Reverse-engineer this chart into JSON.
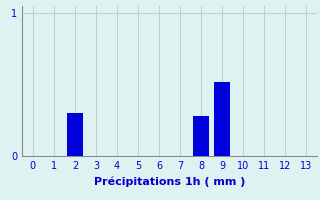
{
  "xlabel": "Précipitations 1h ( mm )",
  "hours": [
    0,
    1,
    2,
    3,
    4,
    5,
    6,
    7,
    8,
    9,
    10,
    11,
    12,
    13
  ],
  "values": [
    0,
    0,
    0.3,
    0,
    0,
    0,
    0,
    0,
    0.28,
    0.52,
    0,
    0,
    0,
    0
  ],
  "bar_color": "#0000dd",
  "background_color": "#dff2f2",
  "grid_color": "#b0d4d4",
  "text_color": "#0000cc",
  "ylim": [
    0,
    1.05
  ],
  "xlim": [
    -0.5,
    13.5
  ],
  "yticks": [
    0,
    1
  ],
  "xticks": [
    0,
    1,
    2,
    3,
    4,
    5,
    6,
    7,
    8,
    9,
    10,
    11,
    12,
    13
  ],
  "xlabel_fontsize": 8,
  "tick_fontsize": 7,
  "bar_width": 0.75
}
